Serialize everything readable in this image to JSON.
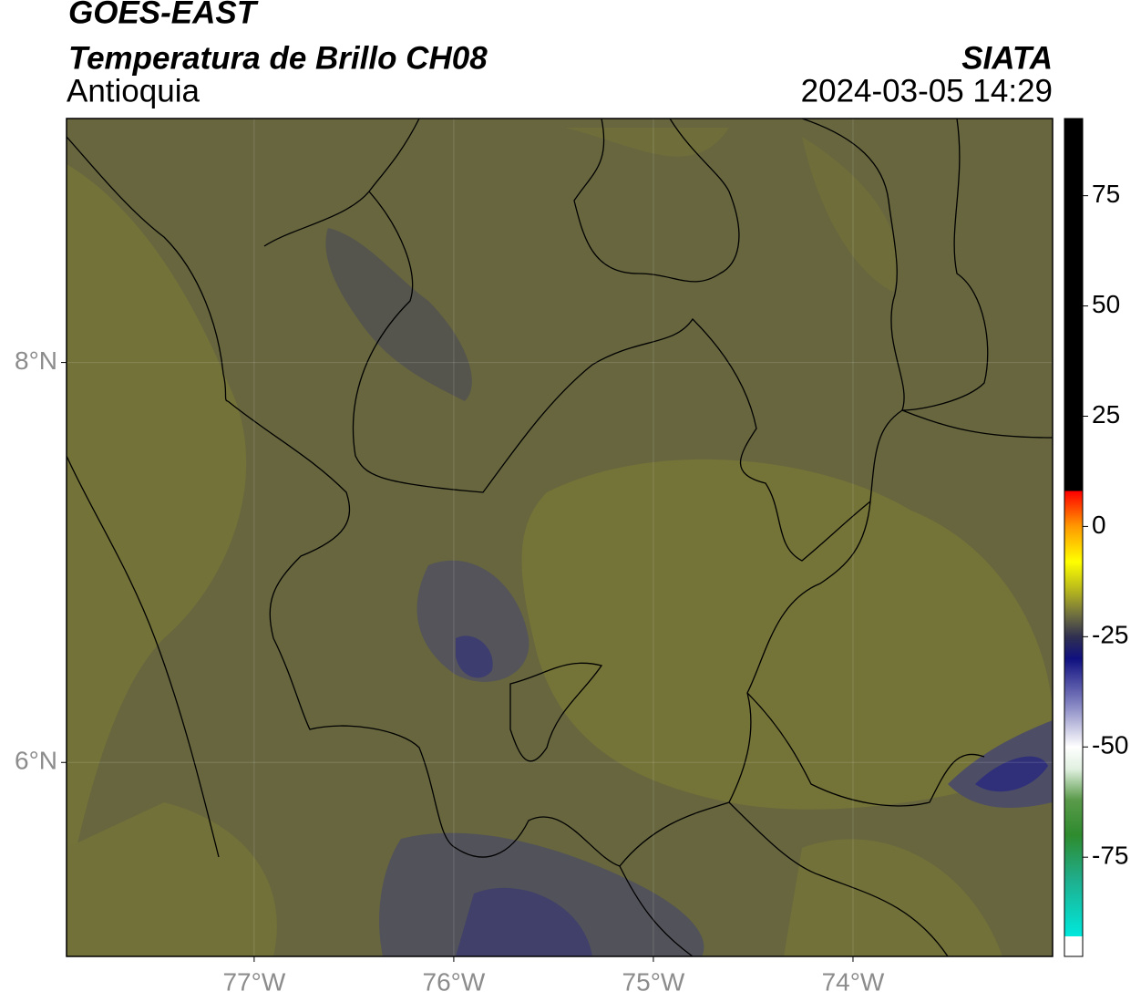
{
  "header": {
    "title": "GOES-EAST",
    "subtitle": "Temperatura de Brillo CH08",
    "region": "Antioquia",
    "source": "SIATA",
    "datetime": "2024-03-05 14:29"
  },
  "map": {
    "lonlim": [
      -77.94,
      -73.0
    ],
    "latlim": [
      5.03,
      9.22
    ],
    "lonticks": [
      {
        "value": -77,
        "label": "77°W"
      },
      {
        "value": -76,
        "label": "76°W"
      },
      {
        "value": -75,
        "label": "75°W"
      },
      {
        "value": -74,
        "label": "74°W"
      }
    ],
    "latticks": [
      {
        "value": 8,
        "label": "8°N"
      },
      {
        "value": 6,
        "label": "6°N"
      }
    ],
    "grid": true
  },
  "colorbar": {
    "lim": [
      -97.5,
      92.5
    ],
    "ticks": [
      75,
      50,
      25,
      0,
      -25,
      -50,
      -75
    ],
    "colormap": [
      {
        "value": -97.5,
        "color": "#ffffff"
      },
      {
        "value": -93,
        "color": "#ffffff"
      },
      {
        "value": -92.9,
        "color": "#00e8dc"
      },
      {
        "value": -80,
        "color": "#1fae8c"
      },
      {
        "value": -70,
        "color": "#2e8b2e"
      },
      {
        "value": -62,
        "color": "#5a9a4a"
      },
      {
        "value": -55,
        "color": "#e0f0e0"
      },
      {
        "value": -50,
        "color": "#ffffff"
      },
      {
        "value": -40,
        "color": "#8080c0"
      },
      {
        "value": -30,
        "color": "#101080"
      },
      {
        "value": -25,
        "color": "#303050"
      },
      {
        "value": -20,
        "color": "#707040"
      },
      {
        "value": -15,
        "color": "#b0b020"
      },
      {
        "value": -8,
        "color": "#ffff00"
      },
      {
        "value": 0,
        "color": "#ff9900"
      },
      {
        "value": 8,
        "color": "#ff0000"
      },
      {
        "value": 8.1,
        "color": "#000000"
      },
      {
        "value": 92.5,
        "color": "#000000"
      }
    ]
  }
}
